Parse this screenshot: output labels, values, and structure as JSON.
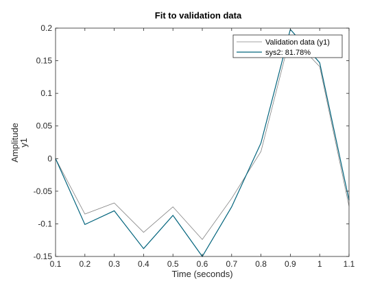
{
  "chart_data": {
    "type": "line",
    "title": "Fit to validation data",
    "xlabel": "Time (seconds)",
    "ylabel": "Amplitude",
    "ylabel2": "y1",
    "xlim": [
      0.1,
      1.1
    ],
    "ylim": [
      -0.15,
      0.2
    ],
    "xticks": [
      "0.1",
      "0.2",
      "0.3",
      "0.4",
      "0.5",
      "0.6",
      "0.7",
      "0.8",
      "0.9",
      "1",
      "1.1"
    ],
    "yticks": [
      "-0.15",
      "-0.1",
      "-0.05",
      "0",
      "0.05",
      "0.1",
      "0.15",
      "0.2"
    ],
    "grid": false,
    "legend_position": "top-right",
    "x": [
      0.1,
      0.2,
      0.3,
      0.4,
      0.5,
      0.6,
      0.7,
      0.8,
      0.9,
      1.0,
      1.1
    ],
    "series": [
      {
        "name": "Validation data (y1)",
        "color": "#808080",
        "values": [
          0.0,
          -0.085,
          -0.068,
          -0.113,
          -0.074,
          -0.124,
          -0.061,
          0.011,
          0.188,
          0.141,
          -0.073
        ]
      },
      {
        "name": "sys2: 81.78%",
        "color": "#00637c",
        "values": [
          0.0,
          -0.101,
          -0.08,
          -0.138,
          -0.087,
          -0.15,
          -0.074,
          0.024,
          0.198,
          0.147,
          -0.064
        ]
      }
    ]
  }
}
